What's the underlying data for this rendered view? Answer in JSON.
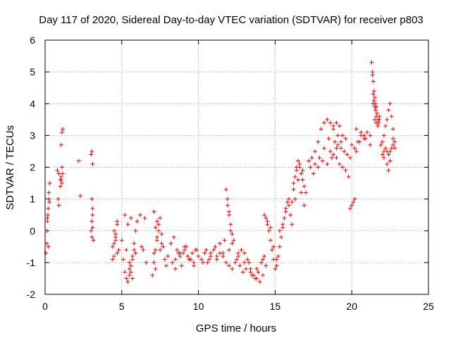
{
  "chart_data": {
    "type": "scatter",
    "title": "Day 117 of 2020, Sidereal Day-to-day VTEC variation (SDTVAR) for receiver p803",
    "xlabel": "GPS time / hours",
    "ylabel": "SDTVAR / TECUs",
    "xlim": [
      0,
      25
    ],
    "ylim": [
      -2,
      6
    ],
    "xticks": [
      0,
      5,
      10,
      15,
      20,
      25
    ],
    "yticks": [
      -2,
      -1,
      0,
      1,
      2,
      3,
      4,
      5,
      6
    ],
    "grid": true,
    "marker": "+",
    "color": "#ff0000",
    "series": [
      {
        "name": "SDTVAR",
        "x": [
          0.05,
          0.1,
          0.15,
          0.2,
          0.25,
          0.3,
          0.12,
          0.18,
          0.22,
          0.28,
          0.15,
          0.25,
          0.8,
          0.85,
          0.9,
          0.9,
          1.0,
          1.05,
          1.1,
          1.05,
          1.1,
          1.15,
          1.0,
          1.05,
          1.1,
          1.15,
          2.2,
          2.3,
          3.0,
          3.05,
          3.1,
          3.05,
          3.1,
          3.0,
          3.05,
          3.1,
          3.15,
          3.05,
          3.1,
          4.4,
          4.5,
          4.6,
          4.7,
          4.8,
          4.5,
          4.6,
          4.7,
          4.4,
          4.5,
          4.6,
          4.7,
          5.0,
          5.1,
          5.2,
          5.3,
          5.4,
          5.5,
          5.6,
          5.7,
          5.8,
          5.9,
          6.0,
          5.2,
          5.4,
          5.6,
          5.5,
          5.6,
          5.7,
          5.8,
          5.3,
          5.5,
          5.7,
          5.9,
          6.2,
          6.3,
          6.5,
          6.4,
          6.6,
          7.0,
          7.1,
          7.2,
          7.3,
          7.4,
          7.5,
          7.6,
          7.7,
          7.8,
          7.9,
          8.0,
          7.1,
          7.3,
          7.5,
          7.2,
          7.4,
          7.6,
          7.1,
          7.2,
          7.3,
          8.2,
          8.4,
          8.6,
          8.8,
          9.0,
          9.2,
          9.4,
          9.6,
          9.8,
          10.0,
          8.3,
          8.5,
          8.7,
          8.9,
          9.1,
          9.3,
          9.5,
          9.7,
          9.9,
          8.5,
          8.8,
          9.1,
          9.4,
          9.7,
          10.2,
          10.4,
          10.6,
          10.8,
          11.0,
          11.2,
          11.4,
          11.6,
          11.8,
          12.0,
          12.2,
          10.5,
          10.8,
          11.1,
          11.4,
          11.7,
          12.0,
          10.3,
          10.7,
          11.2,
          11.6,
          11.8,
          11.9,
          12.0,
          12.1,
          12.2,
          12.3,
          11.9,
          12.0,
          12.1,
          12.2,
          12.4,
          12.6,
          12.8,
          13.0,
          13.2,
          13.4,
          13.6,
          13.8,
          14.0,
          14.2,
          14.4,
          12.5,
          12.7,
          12.9,
          13.1,
          13.3,
          13.5,
          13.7,
          13.9,
          14.1,
          14.3,
          12.6,
          13.0,
          13.4,
          13.8,
          14.2,
          14.3,
          14.4,
          14.5,
          14.6,
          14.7,
          14.8,
          14.9,
          15.0,
          15.1,
          15.2,
          15.3,
          15.4,
          15.5,
          15.6,
          15.7,
          15.8,
          15.9,
          14.5,
          14.7,
          14.9,
          15.1,
          15.3,
          15.5,
          15.7,
          15.9,
          16.0,
          16.1,
          16.2,
          16.3,
          16.4,
          16.5,
          16.6,
          16.7,
          16.8,
          16.9,
          17.0,
          16.1,
          16.3,
          16.5,
          16.7,
          16.9,
          16.2,
          16.4,
          16.6,
          16.8,
          17.2,
          17.4,
          17.6,
          17.8,
          18.0,
          18.2,
          18.4,
          18.6,
          18.8,
          19.0,
          19.2,
          19.4,
          17.3,
          17.6,
          17.9,
          18.2,
          18.5,
          18.8,
          19.1,
          17.5,
          17.8,
          18.1,
          18.4,
          18.7,
          19.0,
          19.3,
          19.6,
          18.6,
          18.8,
          19.0,
          19.2,
          19.4,
          19.6,
          19.8,
          18.9,
          19.1,
          19.3,
          19.5,
          19.7,
          19.9,
          19.9,
          20.0,
          20.1,
          20.2,
          20.3,
          20.4,
          20.6,
          20.8,
          21.0,
          21.2,
          20.0,
          20.3,
          20.6,
          20.9,
          21.2,
          20.2,
          20.5,
          20.8,
          21.3,
          21.35,
          21.4,
          21.45,
          21.5,
          21.55,
          21.6,
          21.65,
          21.7,
          21.75,
          21.8,
          21.4,
          21.45,
          21.5,
          21.55,
          21.6,
          21.35,
          21.4,
          21.5,
          21.6,
          21.7,
          21.8,
          21.9,
          22.0,
          22.1,
          22.2,
          22.3,
          22.4,
          22.5,
          22.6,
          22.7,
          22.8,
          22.0,
          22.1,
          22.2,
          22.3,
          22.4,
          22.5,
          22.6,
          22.7,
          22.8,
          22.1,
          22.3,
          22.5,
          22.7,
          22.4,
          22.5
        ],
        "y": [
          -0.7,
          -0.4,
          0.3,
          0.7,
          1.2,
          1.5,
          0.0,
          0.5,
          -0.5,
          0.9,
          0.4,
          1.0,
          1.9,
          1.0,
          0.8,
          1.8,
          1.6,
          1.7,
          2.0,
          2.7,
          3.1,
          3.2,
          1.4,
          1.6,
          1.5,
          1.8,
          2.2,
          1.1,
          2.4,
          2.5,
          2.1,
          0.3,
          0.1,
          0.0,
          -0.2,
          0.5,
          -0.3,
          1.0,
          0.7,
          -0.5,
          -0.8,
          -0.2,
          0.3,
          -0.6,
          0.0,
          -0.1,
          0.2,
          -0.9,
          -0.4,
          -0.3,
          -0.7,
          -0.3,
          -0.9,
          -1.3,
          -1.5,
          -1.6,
          -1.4,
          -1.1,
          -0.8,
          -0.4,
          0.0,
          0.3,
          0.5,
          0.2,
          0.4,
          -1.2,
          -1.3,
          -0.9,
          -0.6,
          -0.6,
          -1.0,
          -1.5,
          -0.7,
          0.5,
          -0.5,
          0.4,
          -0.6,
          -1.0,
          -1.4,
          -1.0,
          -0.6,
          -0.2,
          0.2,
          0.4,
          -0.1,
          -0.5,
          -0.9,
          -1.1,
          -0.8,
          0.6,
          -0.3,
          -0.6,
          -1.2,
          0.0,
          -0.4,
          -0.7,
          0.1,
          0.3,
          -0.4,
          -0.2,
          -0.6,
          -0.8,
          -0.7,
          -0.5,
          -0.9,
          -0.7,
          -0.6,
          -0.8,
          -1.0,
          -0.9,
          -0.7,
          -1.1,
          -0.6,
          -0.8,
          -0.9,
          -1.0,
          -0.6,
          -1.2,
          -0.7,
          -0.5,
          -0.9,
          -1.1,
          -0.9,
          -0.7,
          -1.0,
          -0.8,
          -0.6,
          -0.9,
          -0.7,
          -0.8,
          -1.0,
          -1.1,
          -1.2,
          -0.6,
          -0.7,
          -0.5,
          -0.4,
          -0.3,
          -0.6,
          -1.0,
          -0.9,
          -0.8,
          -0.7,
          1.3,
          0.8,
          0.5,
          0.2,
          -0.1,
          -0.3,
          1.0,
          0.6,
          0.0,
          -0.4,
          -1.0,
          -0.8,
          -0.6,
          -0.7,
          -0.9,
          -1.2,
          -1.4,
          -1.5,
          -1.6,
          -1.4,
          -1.1,
          -0.9,
          -1.1,
          -1.3,
          -1.2,
          -1.0,
          -1.4,
          -1.5,
          -1.3,
          -1.0,
          -0.8,
          -0.7,
          -1.0,
          -1.3,
          -1.2,
          -0.9,
          0.5,
          0.4,
          0.2,
          0.0,
          -0.3,
          -0.6,
          -0.9,
          -1.2,
          -1.1,
          -0.8,
          -0.5,
          -0.2,
          0.1,
          0.4,
          0.7,
          0.9,
          1.0,
          0.3,
          0.1,
          -0.5,
          -0.9,
          0.0,
          0.2,
          0.6,
          0.8,
          0.5,
          0.9,
          1.3,
          1.7,
          2.0,
          2.2,
          2.0,
          1.8,
          1.6,
          1.4,
          1.2,
          0.2,
          1.0,
          1.6,
          1.2,
          0.8,
          1.5,
          1.9,
          2.1,
          1.9,
          2.2,
          2.3,
          2.5,
          2.8,
          3.2,
          3.4,
          3.5,
          3.4,
          3.3,
          3.4,
          3.3,
          3.0,
          2.0,
          2.1,
          2.3,
          2.6,
          2.9,
          3.2,
          3.0,
          1.8,
          2.0,
          2.2,
          2.1,
          2.3,
          2.6,
          2.8,
          2.9,
          2.5,
          2.4,
          2.3,
          2.1,
          2.0,
          1.9,
          1.7,
          2.8,
          2.7,
          2.6,
          2.5,
          2.4,
          2.3,
          0.7,
          0.8,
          0.9,
          1.0,
          2.5,
          2.8,
          3.0,
          2.9,
          3.1,
          3.0,
          2.7,
          3.2,
          3.1,
          2.9,
          2.7,
          2.6,
          2.8,
          3.0,
          5.3,
          5.0,
          4.7,
          4.4,
          4.2,
          4.0,
          3.9,
          3.7,
          3.5,
          3.4,
          3.6,
          4.0,
          4.1,
          3.9,
          3.8,
          3.6,
          4.9,
          4.3,
          3.5,
          3.4,
          3.3,
          3.5,
          2.7,
          2.8,
          3.0,
          3.3,
          3.5,
          3.8,
          4.0,
          3.6,
          2.9,
          2.6,
          2.4,
          2.5,
          2.6,
          2.5,
          2.4,
          2.5,
          2.6,
          2.7,
          2.8,
          2.3,
          2.1,
          2.2,
          3.2,
          1.9,
          2.2
        ]
      }
    ]
  }
}
